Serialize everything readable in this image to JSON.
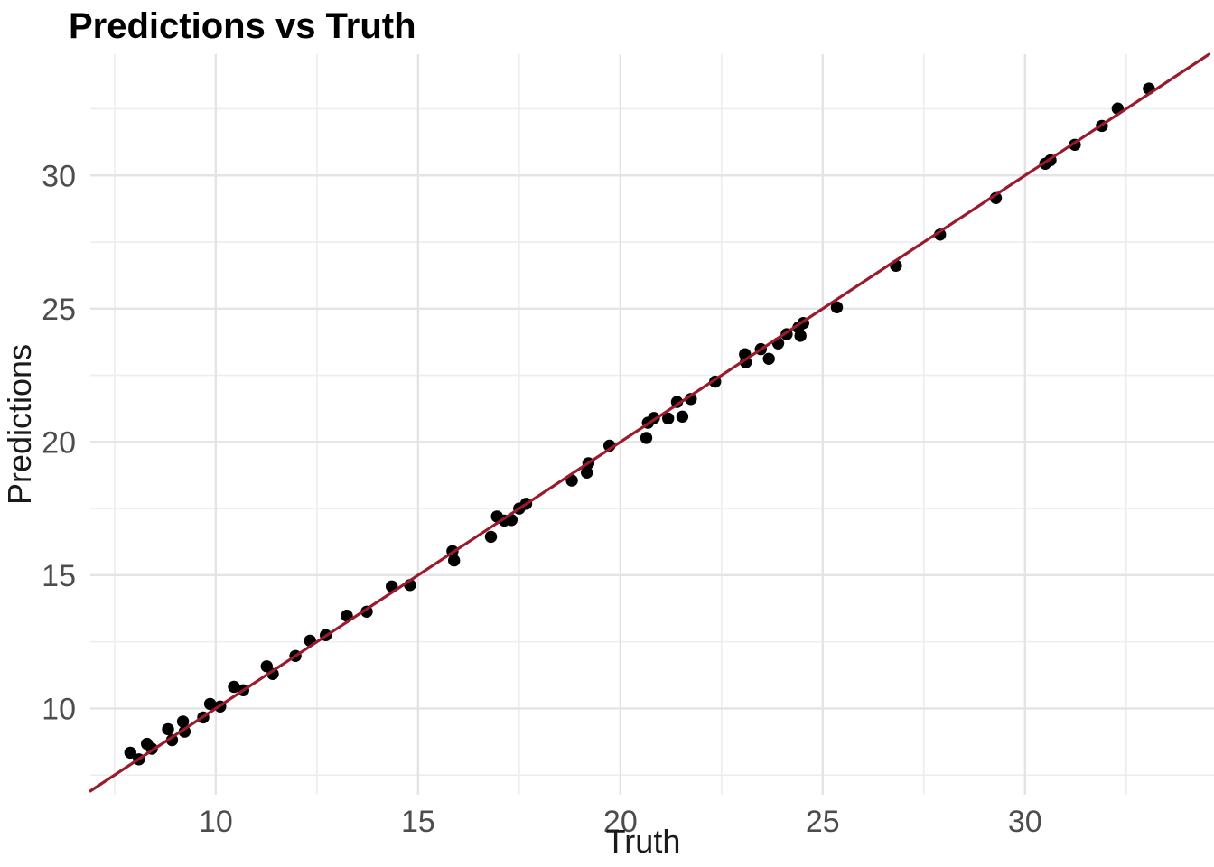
{
  "chart_data": {
    "type": "scatter",
    "title": "Predictions vs Truth",
    "xlabel": "Truth",
    "ylabel": "Predictions",
    "x_ticks": [
      10,
      15,
      20,
      25,
      30
    ],
    "y_ticks": [
      10,
      15,
      20,
      25,
      30
    ],
    "x_minor": [
      7.5,
      12.5,
      17.5,
      22.5,
      27.5,
      32.5
    ],
    "y_minor": [
      7.5,
      12.5,
      17.5,
      22.5,
      27.5,
      32.5
    ],
    "xlim": [
      6.9,
      34.67
    ],
    "ylim": [
      6.76,
      34.55
    ],
    "grid": true,
    "legend": "none",
    "reference_line": {
      "slope": 1,
      "intercept": 0
    },
    "points": [
      [
        7.89,
        8.34
      ],
      [
        8.1,
        8.09
      ],
      [
        8.3,
        8.67
      ],
      [
        8.42,
        8.49
      ],
      [
        8.82,
        9.22
      ],
      [
        8.92,
        8.81
      ],
      [
        9.19,
        9.51
      ],
      [
        9.23,
        9.13
      ],
      [
        9.69,
        9.66
      ],
      [
        9.86,
        10.17
      ],
      [
        10.11,
        10.07
      ],
      [
        10.45,
        10.81
      ],
      [
        10.68,
        10.68
      ],
      [
        11.26,
        11.58
      ],
      [
        11.41,
        11.29
      ],
      [
        11.97,
        11.97
      ],
      [
        12.33,
        12.54
      ],
      [
        12.72,
        12.75
      ],
      [
        13.24,
        13.48
      ],
      [
        13.73,
        13.63
      ],
      [
        14.35,
        14.58
      ],
      [
        14.8,
        14.63
      ],
      [
        15.85,
        15.9
      ],
      [
        15.89,
        15.55
      ],
      [
        16.8,
        16.44
      ],
      [
        16.95,
        17.2
      ],
      [
        17.13,
        17.05
      ],
      [
        17.31,
        17.07
      ],
      [
        17.5,
        17.5
      ],
      [
        17.67,
        17.68
      ],
      [
        18.8,
        18.55
      ],
      [
        19.17,
        18.85
      ],
      [
        19.21,
        19.2
      ],
      [
        19.73,
        19.86
      ],
      [
        20.64,
        20.15
      ],
      [
        20.68,
        20.72
      ],
      [
        20.83,
        20.9
      ],
      [
        21.18,
        20.88
      ],
      [
        21.4,
        21.5
      ],
      [
        21.53,
        20.95
      ],
      [
        21.74,
        21.61
      ],
      [
        22.34,
        22.26
      ],
      [
        23.08,
        23.29
      ],
      [
        23.1,
        22.99
      ],
      [
        23.47,
        23.48
      ],
      [
        23.67,
        23.12
      ],
      [
        23.9,
        23.7
      ],
      [
        24.11,
        24.04
      ],
      [
        24.4,
        24.29
      ],
      [
        24.52,
        24.46
      ],
      [
        24.45,
        23.98
      ],
      [
        25.35,
        25.05
      ],
      [
        26.81,
        26.61
      ],
      [
        27.9,
        27.78
      ],
      [
        29.28,
        29.15
      ],
      [
        30.5,
        30.44
      ],
      [
        30.63,
        30.57
      ],
      [
        31.23,
        31.15
      ],
      [
        31.9,
        31.86
      ],
      [
        32.29,
        32.51
      ],
      [
        33.06,
        33.26
      ]
    ]
  },
  "colors": {
    "background": "#FFFFFF",
    "grid_major": "#E4E4E4",
    "grid_minor": "#EDEDED",
    "point": "#000000",
    "reference_line": "#9A1B2B",
    "tick_text": "#4D4D4D",
    "axis_title_text": "#1A1A1A",
    "title_text": "#000000"
  }
}
